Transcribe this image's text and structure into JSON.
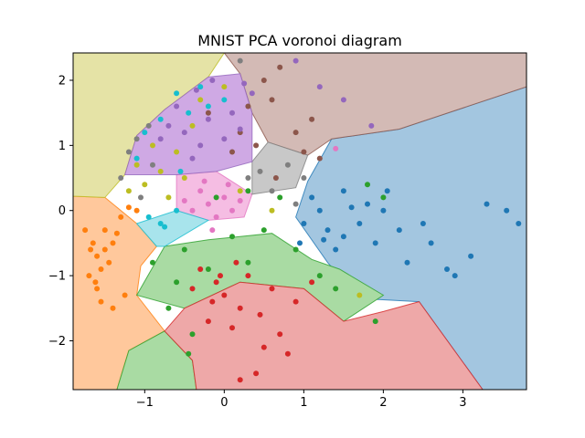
{
  "chart_data": {
    "type": "scatter",
    "title": "MNIST PCA voronoi diagram",
    "xlabel": "",
    "ylabel": "",
    "xlim": [
      -1.9,
      3.8
    ],
    "ylim": [
      -2.75,
      2.42
    ],
    "x_ticks": [
      -1,
      0,
      1,
      2,
      3
    ],
    "y_ticks": [
      -2,
      -1,
      0,
      1,
      2
    ],
    "x_tick_labels": [
      "−1",
      "0",
      "1",
      "2",
      "3"
    ],
    "y_tick_labels": [
      "−2",
      "−1",
      "0",
      "1",
      "2"
    ],
    "grid": false,
    "legend": "none",
    "diagram": "voronoi cells colored by class of each point",
    "regions": [
      {
        "class": 0,
        "color": "#a3c6e0",
        "edge": "#1f77b4",
        "polygon": [
          [
            1.35,
            1.1
          ],
          [
            2.2,
            1.25
          ],
          [
            3.8,
            1.9
          ],
          [
            3.8,
            -2.75
          ],
          [
            3.25,
            -2.75
          ],
          [
            2.45,
            -1.4
          ],
          [
            1.7,
            -1.35
          ],
          [
            1.3,
            -0.8
          ],
          [
            0.9,
            -0.1
          ],
          [
            1.05,
            0.45
          ]
        ]
      },
      {
        "class": 1,
        "color": "#ffc89c",
        "edge": "#ff7f0e",
        "polygon": [
          [
            -1.9,
            0.22
          ],
          [
            -1.5,
            0.2
          ],
          [
            -1.1,
            -0.2
          ],
          [
            -0.85,
            -0.55
          ],
          [
            -1.05,
            -0.85
          ],
          [
            -1.1,
            -1.3
          ],
          [
            -0.75,
            -1.85
          ],
          [
            -1.2,
            -2.15
          ],
          [
            -1.35,
            -2.75
          ],
          [
            -1.9,
            -2.75
          ]
        ]
      },
      {
        "class": 2,
        "color": "#a9dba3",
        "edge": "#2ca02c",
        "polygon": [
          [
            -1.35,
            -2.75
          ],
          [
            -0.35,
            -2.75
          ],
          [
            -0.4,
            -2.3
          ],
          [
            -0.75,
            -1.85
          ],
          [
            -1.2,
            -2.15
          ]
        ]
      },
      {
        "class": 2,
        "color": "#a9dba3",
        "edge": "#2ca02c",
        "polygon": [
          [
            -1.1,
            -1.3
          ],
          [
            -0.75,
            -0.55
          ],
          [
            -0.2,
            -0.45
          ],
          [
            0.6,
            -0.35
          ],
          [
            1.1,
            -0.75
          ],
          [
            1.45,
            -0.9
          ],
          [
            2.0,
            -1.3
          ],
          [
            1.5,
            -1.7
          ],
          [
            1.0,
            -1.2
          ],
          [
            0.2,
            -1.1
          ],
          [
            -0.5,
            -1.5
          ]
        ]
      },
      {
        "class": 3,
        "color": "#eea8a8",
        "edge": "#d62728",
        "polygon": [
          [
            -0.75,
            -1.85
          ],
          [
            -0.5,
            -1.5
          ],
          [
            0.2,
            -1.1
          ],
          [
            1.0,
            -1.2
          ],
          [
            1.5,
            -1.7
          ],
          [
            2.0,
            -1.55
          ],
          [
            2.45,
            -1.4
          ],
          [
            3.25,
            -2.75
          ],
          [
            -0.35,
            -2.75
          ],
          [
            -0.4,
            -2.3
          ]
        ]
      },
      {
        "class": 4,
        "color": "#e5e3a6",
        "edge": "#bcbd22",
        "polygon": [
          [
            -1.9,
            2.42
          ],
          [
            0.0,
            2.42
          ],
          [
            -0.2,
            2.05
          ],
          [
            -0.75,
            1.55
          ],
          [
            -1.1,
            1.15
          ],
          [
            -1.25,
            0.55
          ],
          [
            -1.5,
            0.2
          ],
          [
            -1.9,
            0.22
          ]
        ]
      },
      {
        "class": 5,
        "color": "#d3bab5",
        "edge": "#8c564b",
        "polygon": [
          [
            0.0,
            2.42
          ],
          [
            3.8,
            2.42
          ],
          [
            3.8,
            1.9
          ],
          [
            2.2,
            1.25
          ],
          [
            1.35,
            1.1
          ],
          [
            1.05,
            0.85
          ],
          [
            0.55,
            1.05
          ],
          [
            0.35,
            1.5
          ],
          [
            0.2,
            2.1
          ]
        ]
      },
      {
        "class": 6,
        "color": "#f5bde3",
        "edge": "#e377c2",
        "polygon": [
          [
            -0.6,
            0.55
          ],
          [
            -0.1,
            0.6
          ],
          [
            0.35,
            0.25
          ],
          [
            0.25,
            -0.1
          ],
          [
            -0.2,
            -0.15
          ],
          [
            -0.6,
            0.0
          ]
        ]
      },
      {
        "class": 7,
        "color": "#c8c8c8",
        "edge": "#7f7f7f",
        "polygon": [
          [
            0.35,
            0.25
          ],
          [
            0.9,
            0.35
          ],
          [
            1.05,
            0.85
          ],
          [
            0.55,
            1.05
          ],
          [
            0.35,
            0.75
          ]
        ]
      },
      {
        "class": 8,
        "color": "#cfa9e4",
        "edge": "#9467bd",
        "polygon": [
          [
            -1.1,
            1.15
          ],
          [
            -0.75,
            1.55
          ],
          [
            -0.2,
            2.05
          ],
          [
            0.2,
            2.1
          ],
          [
            0.35,
            1.5
          ],
          [
            0.35,
            0.75
          ],
          [
            -0.1,
            0.6
          ],
          [
            -0.6,
            0.55
          ],
          [
            -1.25,
            0.55
          ]
        ]
      },
      {
        "class": 9,
        "color": "#a8e4ec",
        "edge": "#17becf",
        "polygon": [
          [
            -1.1,
            -0.2
          ],
          [
            -0.6,
            0.0
          ],
          [
            -0.2,
            -0.15
          ],
          [
            -0.75,
            -0.55
          ],
          [
            -0.85,
            -0.55
          ]
        ]
      }
    ],
    "series": [
      {
        "class": 0,
        "color": "#1f77b4",
        "points": [
          [
            1.1,
            0.2
          ],
          [
            1.2,
            0.0
          ],
          [
            1.3,
            -0.3
          ],
          [
            1.5,
            -0.4
          ],
          [
            1.7,
            -0.2
          ],
          [
            1.8,
            0.1
          ],
          [
            2.0,
            0.0
          ],
          [
            1.5,
            0.3
          ],
          [
            1.4,
            -0.6
          ],
          [
            1.9,
            -0.5
          ],
          [
            2.2,
            -0.3
          ],
          [
            2.3,
            -0.8
          ],
          [
            2.6,
            -0.5
          ],
          [
            2.8,
            -0.9
          ],
          [
            3.1,
            -0.7
          ],
          [
            3.3,
            0.1
          ],
          [
            3.55,
            0.0
          ],
          [
            3.7,
            -0.2
          ],
          [
            2.9,
            -1.0
          ],
          [
            1.0,
            -0.2
          ],
          [
            0.95,
            -0.5
          ],
          [
            1.6,
            0.05
          ],
          [
            1.25,
            -0.45
          ],
          [
            2.05,
            0.3
          ],
          [
            2.5,
            -0.2
          ]
        ]
      },
      {
        "class": 1,
        "color": "#ff7f0e",
        "points": [
          [
            -1.65,
            -0.5
          ],
          [
            -1.6,
            -0.7
          ],
          [
            -1.55,
            -0.9
          ],
          [
            -1.7,
            -1.0
          ],
          [
            -1.6,
            -1.2
          ],
          [
            -1.5,
            -0.3
          ],
          [
            -1.4,
            -0.5
          ],
          [
            -1.75,
            -0.3
          ],
          [
            -1.3,
            -0.1
          ],
          [
            -1.55,
            -1.4
          ],
          [
            -1.45,
            -0.8
          ],
          [
            -1.68,
            -0.6
          ],
          [
            -1.62,
            -1.1
          ],
          [
            -1.5,
            -0.6
          ],
          [
            -1.2,
            0.05
          ],
          [
            -1.1,
            0.0
          ],
          [
            -1.35,
            -0.35
          ],
          [
            -1.25,
            -1.3
          ],
          [
            -1.4,
            -1.5
          ]
        ]
      },
      {
        "class": 2,
        "color": "#2ca02c",
        "points": [
          [
            -0.5,
            -0.6
          ],
          [
            -0.9,
            -0.8
          ],
          [
            -0.7,
            -1.5
          ],
          [
            0.1,
            -0.4
          ],
          [
            0.5,
            -0.3
          ],
          [
            0.9,
            -0.6
          ],
          [
            1.8,
            0.4
          ],
          [
            2.0,
            0.2
          ],
          [
            1.9,
            -1.7
          ],
          [
            -0.4,
            -1.9
          ],
          [
            -0.45,
            -2.2
          ],
          [
            -0.2,
            -0.9
          ],
          [
            0.3,
            -0.8
          ],
          [
            -0.6,
            -1.1
          ],
          [
            1.2,
            -1.0
          ],
          [
            0.3,
            0.3
          ],
          [
            0.7,
            0.2
          ],
          [
            1.4,
            -1.2
          ],
          [
            -0.1,
            0.2
          ]
        ]
      },
      {
        "class": 3,
        "color": "#d62728",
        "points": [
          [
            -0.3,
            -0.9
          ],
          [
            -0.1,
            -1.1
          ],
          [
            0.0,
            -1.3
          ],
          [
            0.2,
            -1.5
          ],
          [
            -0.2,
            -1.7
          ],
          [
            0.3,
            -1.0
          ],
          [
            0.6,
            -1.2
          ],
          [
            0.9,
            -1.4
          ],
          [
            0.5,
            -2.1
          ],
          [
            0.7,
            -1.9
          ],
          [
            0.2,
            -2.6
          ],
          [
            0.4,
            -2.5
          ],
          [
            -0.05,
            -1.0
          ],
          [
            0.15,
            -0.8
          ],
          [
            -0.4,
            -1.2
          ],
          [
            0.45,
            -1.6
          ],
          [
            1.1,
            -1.1
          ],
          [
            0.8,
            -2.2
          ],
          [
            0.1,
            -1.8
          ],
          [
            -0.15,
            -1.4
          ]
        ]
      },
      {
        "class": 4,
        "color": "#bcbd22",
        "points": [
          [
            -0.8,
            0.6
          ],
          [
            -1.0,
            0.4
          ],
          [
            -0.6,
            0.9
          ],
          [
            -0.4,
            1.3
          ],
          [
            -0.9,
            1.0
          ],
          [
            -1.2,
            0.3
          ],
          [
            -0.7,
            0.2
          ],
          [
            1.7,
            -1.3
          ],
          [
            0.2,
            0.3
          ],
          [
            0.6,
            0.0
          ],
          [
            -0.5,
            0.5
          ],
          [
            -1.1,
            0.7
          ],
          [
            -0.3,
            1.7
          ],
          [
            0.0,
            1.9
          ]
        ]
      },
      {
        "class": 5,
        "color": "#8c564b",
        "points": [
          [
            0.3,
            1.6
          ],
          [
            0.6,
            1.7
          ],
          [
            0.9,
            1.2
          ],
          [
            1.0,
            0.9
          ],
          [
            0.5,
            2.0
          ],
          [
            0.7,
            2.2
          ],
          [
            0.2,
            1.2
          ],
          [
            1.2,
            0.8
          ],
          [
            0.4,
            1.0
          ],
          [
            1.1,
            1.4
          ],
          [
            -0.2,
            1.5
          ],
          [
            0.1,
            0.9
          ],
          [
            0.65,
            0.5
          ]
        ]
      },
      {
        "class": 6,
        "color": "#e377c2",
        "points": [
          [
            -0.3,
            0.3
          ],
          [
            -0.2,
            0.1
          ],
          [
            0.0,
            0.2
          ],
          [
            -0.4,
            0.0
          ],
          [
            -0.1,
            -0.1
          ],
          [
            0.1,
            0.0
          ],
          [
            -0.25,
            0.45
          ],
          [
            -0.5,
            0.15
          ],
          [
            0.05,
            0.4
          ],
          [
            0.2,
            0.15
          ],
          [
            1.4,
            0.95
          ],
          [
            -0.15,
            -0.3
          ]
        ]
      },
      {
        "class": 7,
        "color": "#7f7f7f",
        "points": [
          [
            -1.2,
            0.9
          ],
          [
            -1.1,
            1.1
          ],
          [
            -0.9,
            0.7
          ],
          [
            0.8,
            0.7
          ],
          [
            1.0,
            0.5
          ],
          [
            0.6,
            0.3
          ],
          [
            0.9,
            0.1
          ],
          [
            -1.3,
            0.5
          ],
          [
            -0.95,
            1.3
          ],
          [
            0.2,
            2.3
          ],
          [
            0.45,
            0.6
          ],
          [
            0.3,
            0.5
          ],
          [
            -1.05,
            0.2
          ]
        ]
      },
      {
        "class": 8,
        "color": "#9467bd",
        "points": [
          [
            -0.5,
            1.2
          ],
          [
            -0.3,
            1.0
          ],
          [
            -0.7,
            1.3
          ],
          [
            -0.2,
            1.4
          ],
          [
            0.0,
            1.1
          ],
          [
            -0.4,
            0.8
          ],
          [
            0.1,
            1.5
          ],
          [
            -0.6,
            1.6
          ],
          [
            0.35,
            1.8
          ],
          [
            0.9,
            2.3
          ],
          [
            1.5,
            1.7
          ],
          [
            1.85,
            1.3
          ],
          [
            -0.8,
            1.1
          ],
          [
            -0.35,
            1.85
          ],
          [
            0.25,
            1.95
          ],
          [
            -0.15,
            2.0
          ],
          [
            0.2,
            1.25
          ],
          [
            1.2,
            1.9
          ]
        ]
      },
      {
        "class": 9,
        "color": "#17becf",
        "points": [
          [
            -0.8,
            1.4
          ],
          [
            -1.0,
            1.2
          ],
          [
            -0.6,
            1.8
          ],
          [
            -0.3,
            1.9
          ],
          [
            -0.95,
            -0.1
          ],
          [
            -0.8,
            -0.2
          ],
          [
            -0.6,
            0.0
          ],
          [
            -1.1,
            0.8
          ],
          [
            -0.55,
            0.6
          ],
          [
            -0.75,
            -0.25
          ],
          [
            -0.2,
            1.6
          ],
          [
            0.0,
            1.7
          ],
          [
            -0.45,
            1.5
          ]
        ]
      }
    ]
  }
}
